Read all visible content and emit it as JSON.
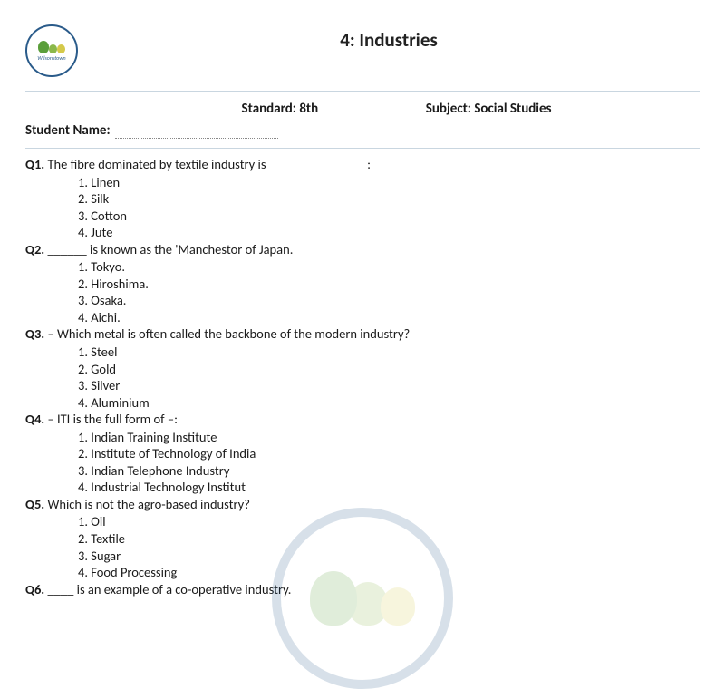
{
  "header": {
    "title": "4: Industries",
    "logo_caption": "Wilsonstown",
    "standard_label": "Standard: 8th",
    "subject_label": "Subject: Social Studies",
    "student_name_label": "Student Name:"
  },
  "questions": [
    {
      "num": "Q1.",
      "text": "The  fibre dominated by textile industry is _______________:",
      "options": [
        "1. Linen",
        "2. Silk",
        "3. Cotton",
        "4. Jute"
      ]
    },
    {
      "num": "Q2.",
      "text": "______ is known as the 'Manchestor of Japan.",
      "options": [
        "1. Tokyo.",
        "2. Hiroshima.",
        "3. Osaka.",
        "4. Aichi."
      ]
    },
    {
      "num": "Q3.",
      "text": "– Which metal is often called the backbone of the modern industry?",
      "options": [
        "1. Steel",
        "2. Gold",
        "3. Silver",
        "4. Aluminium"
      ]
    },
    {
      "num": "Q4.",
      "text": "– ITI is the full form of –:",
      "options": [
        "1. Indian Training Institute",
        "2. Institute of Technology of India",
        "3. Indian Telephone Industry",
        "4. Industrial Technology Institut"
      ]
    },
    {
      "num": "Q5.",
      "text": "Which is not the agro-based industry?",
      "options": [
        "1. Oil",
        "2. Textile",
        "3. Sugar",
        "4. Food Processing"
      ]
    },
    {
      "num": "Q6.",
      "text": "____ is an example of a co-operative industry.",
      "options": []
    }
  ],
  "colors": {
    "logo_border": "#2a5b8a",
    "divider": "#c9d6e0",
    "text": "#1a1a1a",
    "tree_dark": "#5a9e3a",
    "tree_mid": "#8bb84a",
    "tree_light": "#d4c94a",
    "background": "#ffffff"
  }
}
